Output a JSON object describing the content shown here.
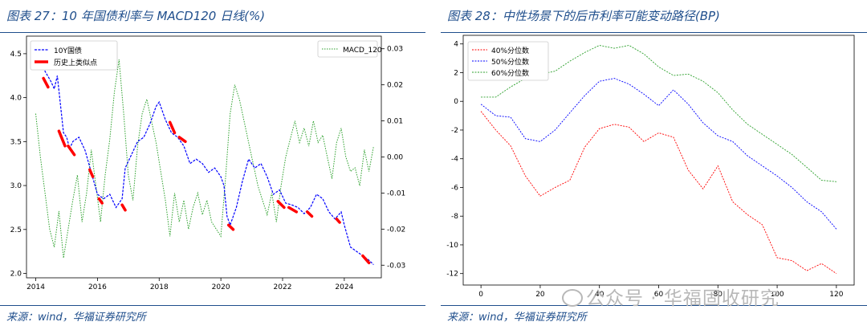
{
  "figures": {
    "left_title": "图表 27：10 年国债利率与 MACD120 日线(%)",
    "right_title": "图表 28：中性场景下的后市利率可能变动路径(BP)",
    "left_source": "来源：wind，华福证券研究所",
    "right_source": "来源：wind，华福证券研究所"
  },
  "watermark": "公众号 · 华福固收研究",
  "chart_data": [
    {
      "type": "line",
      "title": "10 年国债利率与 MACD120 日线(%)",
      "xlabel": "",
      "ylabel": "",
      "xlim": [
        2013.7,
        2025.2
      ],
      "ylim": [
        1.95,
        4.7
      ],
      "y2lim": [
        -0.0335,
        0.0335
      ],
      "xticks": [
        2014,
        2016,
        2018,
        2020,
        2022,
        2024
      ],
      "xtick_labels": [
        "2014",
        "2016",
        "2018",
        "2020",
        "2022",
        "2024"
      ],
      "yticks": [
        2.0,
        2.5,
        3.0,
        3.5,
        4.0,
        4.5
      ],
      "ytick_labels": [
        "2.0",
        "2.5",
        "3.0",
        "3.5",
        "4.0",
        "4.5"
      ],
      "y2ticks": [
        0.03,
        0.02,
        0.01,
        0.0,
        -0.01,
        -0.02,
        -0.03
      ],
      "y2tick_labels": [
        "0.03",
        "0.02",
        "0.01",
        "0.00",
        "-0.01",
        "-0.02",
        "-0.03"
      ],
      "legend_left": {
        "position": "upper-left",
        "entries": [
          "10Y国债",
          "历史上类似点"
        ]
      },
      "legend_right": {
        "position": "upper-right",
        "entries": [
          "MACD_120"
        ]
      },
      "colors": {
        "yield": "#0000ff",
        "similar": "#ff0000",
        "macd": "#2ca02c"
      },
      "series": [
        {
          "name": "10Y国债",
          "axis": "left",
          "x": [
            2014.0,
            2014.2,
            2014.3,
            2014.5,
            2014.6,
            2014.7,
            2014.9,
            2015.0,
            2015.1,
            2015.2,
            2015.4,
            2015.6,
            2015.8,
            2016.0,
            2016.2,
            2016.4,
            2016.6,
            2016.8,
            2016.9,
            2017.1,
            2017.3,
            2017.5,
            2017.7,
            2017.9,
            2018.0,
            2018.2,
            2018.4,
            2018.6,
            2018.8,
            2019.0,
            2019.2,
            2019.4,
            2019.6,
            2019.8,
            2020.0,
            2020.1,
            2020.2,
            2020.3,
            2020.5,
            2020.7,
            2020.9,
            2021.1,
            2021.3,
            2021.5,
            2021.7,
            2021.9,
            2022.1,
            2022.3,
            2022.5,
            2022.7,
            2022.9,
            2023.1,
            2023.3,
            2023.5,
            2023.7,
            2023.9,
            2024.0,
            2024.2,
            2024.4,
            2024.6,
            2024.8,
            2024.95
          ],
          "y": [
            4.62,
            4.45,
            4.3,
            4.18,
            4.1,
            4.25,
            3.6,
            3.55,
            3.42,
            3.5,
            3.55,
            3.4,
            3.15,
            2.9,
            2.85,
            2.9,
            2.75,
            2.85,
            3.2,
            3.35,
            3.5,
            3.55,
            3.7,
            3.9,
            3.95,
            3.75,
            3.6,
            3.55,
            3.45,
            3.25,
            3.3,
            3.25,
            3.15,
            3.2,
            3.1,
            3.0,
            2.65,
            2.55,
            2.75,
            3.05,
            3.3,
            3.2,
            3.25,
            3.1,
            2.9,
            2.95,
            2.8,
            2.78,
            2.75,
            2.68,
            2.75,
            2.9,
            2.85,
            2.7,
            2.62,
            2.7,
            2.55,
            2.3,
            2.25,
            2.2,
            2.15,
            2.1
          ]
        },
        {
          "name": "MACD_120",
          "axis": "right",
          "x": [
            2014.0,
            2014.15,
            2014.3,
            2014.45,
            2014.6,
            2014.75,
            2014.9,
            2015.05,
            2015.2,
            2015.35,
            2015.5,
            2015.65,
            2015.8,
            2015.95,
            2016.1,
            2016.25,
            2016.4,
            2016.55,
            2016.7,
            2016.85,
            2017.0,
            2017.15,
            2017.3,
            2017.45,
            2017.6,
            2017.75,
            2017.9,
            2018.05,
            2018.2,
            2018.35,
            2018.5,
            2018.65,
            2018.8,
            2018.95,
            2019.1,
            2019.25,
            2019.4,
            2019.55,
            2019.7,
            2019.85,
            2020.0,
            2020.15,
            2020.3,
            2020.45,
            2020.6,
            2020.75,
            2020.9,
            2021.05,
            2021.2,
            2021.35,
            2021.5,
            2021.65,
            2021.8,
            2021.95,
            2022.1,
            2022.25,
            2022.4,
            2022.55,
            2022.7,
            2022.85,
            2023.0,
            2023.15,
            2023.3,
            2023.45,
            2023.6,
            2023.75,
            2023.9,
            2024.05,
            2024.2,
            2024.35,
            2024.5,
            2024.65,
            2024.8,
            2024.95
          ],
          "y": [
            0.012,
            0.0,
            -0.01,
            -0.02,
            -0.025,
            -0.015,
            -0.028,
            -0.02,
            -0.012,
            -0.005,
            -0.018,
            -0.01,
            0.002,
            -0.008,
            -0.018,
            -0.005,
            0.005,
            0.018,
            0.027,
            0.012,
            -0.005,
            -0.012,
            0.003,
            0.012,
            0.016,
            0.01,
            0.004,
            -0.004,
            -0.012,
            -0.022,
            -0.01,
            -0.018,
            -0.012,
            -0.02,
            -0.014,
            -0.01,
            -0.016,
            -0.012,
            -0.018,
            -0.02,
            -0.022,
            -0.006,
            0.012,
            0.02,
            0.016,
            0.01,
            0.004,
            -0.002,
            -0.008,
            -0.012,
            -0.016,
            -0.01,
            -0.018,
            -0.008,
            0.0,
            0.005,
            0.01,
            0.004,
            0.008,
            0.003,
            0.01,
            0.004,
            0.006,
            0.0,
            -0.006,
            0.004,
            0.008,
            0.0,
            -0.004,
            -0.003,
            -0.008,
            0.002,
            -0.004,
            0.003
          ]
        }
      ],
      "similar_segments": [
        {
          "x": [
            2014.25,
            2014.4
          ],
          "y": [
            4.22,
            4.12
          ]
        },
        {
          "x": [
            2014.75,
            2014.95
          ],
          "y": [
            3.62,
            3.45
          ]
        },
        {
          "x": [
            2015.05,
            2015.25
          ],
          "y": [
            3.45,
            3.35
          ]
        },
        {
          "x": [
            2015.75,
            2015.85
          ],
          "y": [
            3.18,
            3.1
          ]
        },
        {
          "x": [
            2016.05,
            2016.15
          ],
          "y": [
            2.85,
            2.8
          ]
        },
        {
          "x": [
            2016.8,
            2016.9
          ],
          "y": [
            2.78,
            2.72
          ]
        },
        {
          "x": [
            2018.35,
            2018.5
          ],
          "y": [
            3.72,
            3.6
          ]
        },
        {
          "x": [
            2018.65,
            2018.85
          ],
          "y": [
            3.55,
            3.5
          ]
        },
        {
          "x": [
            2020.25,
            2020.4
          ],
          "y": [
            2.55,
            2.5
          ]
        },
        {
          "x": [
            2021.85,
            2022.05
          ],
          "y": [
            2.82,
            2.75
          ]
        },
        {
          "x": [
            2022.2,
            2022.45
          ],
          "y": [
            2.75,
            2.7
          ]
        },
        {
          "x": [
            2022.8,
            2022.95
          ],
          "y": [
            2.7,
            2.65
          ]
        },
        {
          "x": [
            2023.75,
            2023.85
          ],
          "y": [
            2.62,
            2.58
          ]
        },
        {
          "x": [
            2024.6,
            2024.8
          ],
          "y": [
            2.2,
            2.12
          ]
        }
      ]
    },
    {
      "type": "line",
      "title": "中性场景下的后市利率可能变动路径(BP)",
      "xlabel": "",
      "ylabel": "",
      "xlim": [
        -6,
        126
      ],
      "ylim": [
        -12.8,
        4.6
      ],
      "xticks": [
        0,
        20,
        40,
        60,
        80,
        100,
        120
      ],
      "xtick_labels": [
        "0",
        "20",
        "40",
        "60",
        "80",
        "100",
        "120"
      ],
      "yticks": [
        4,
        2,
        0,
        -2,
        -4,
        -6,
        -8,
        -10,
        -12
      ],
      "ytick_labels": [
        "4",
        "2",
        "0",
        "-2",
        "-4",
        "-6",
        "-8",
        "-10",
        "-12"
      ],
      "legend": {
        "position": "upper-left",
        "entries": [
          "40%分位数",
          "50%分位数",
          "60%分位数"
        ]
      },
      "x": [
        0,
        5,
        10,
        15,
        20,
        25,
        30,
        35,
        40,
        45,
        50,
        55,
        60,
        65,
        70,
        75,
        80,
        85,
        90,
        95,
        100,
        105,
        110,
        115,
        120
      ],
      "series": [
        {
          "name": "40%分位数",
          "color": "#ff0000",
          "values": [
            -0.7,
            -2.0,
            -3.1,
            -5.2,
            -6.6,
            -6.0,
            -5.5,
            -3.2,
            -1.9,
            -1.6,
            -1.8,
            -2.8,
            -2.2,
            -2.5,
            -4.8,
            -6.1,
            -4.5,
            -7.0,
            -7.9,
            -8.6,
            -10.9,
            -11.1,
            -11.8,
            -11.3,
            -12.0
          ]
        },
        {
          "name": "50%分位数",
          "color": "#0000ff",
          "values": [
            -0.2,
            -1.0,
            -1.1,
            -2.6,
            -2.8,
            -2.0,
            -0.8,
            0.4,
            1.4,
            1.6,
            1.2,
            0.5,
            -0.3,
            0.8,
            -0.2,
            -1.5,
            -2.4,
            -2.8,
            -3.8,
            -4.5,
            -5.2,
            -6.0,
            -7.0,
            -7.7,
            -8.9
          ]
        },
        {
          "name": "60%分位数",
          "color": "#2ca02c",
          "values": [
            0.3,
            0.3,
            1.0,
            1.6,
            1.9,
            2.1,
            2.8,
            3.4,
            3.9,
            3.7,
            3.9,
            3.3,
            2.4,
            1.8,
            1.9,
            1.4,
            0.6,
            -0.6,
            -1.6,
            -2.3,
            -3.0,
            -3.7,
            -4.6,
            -5.5,
            -5.6
          ]
        }
      ]
    }
  ]
}
